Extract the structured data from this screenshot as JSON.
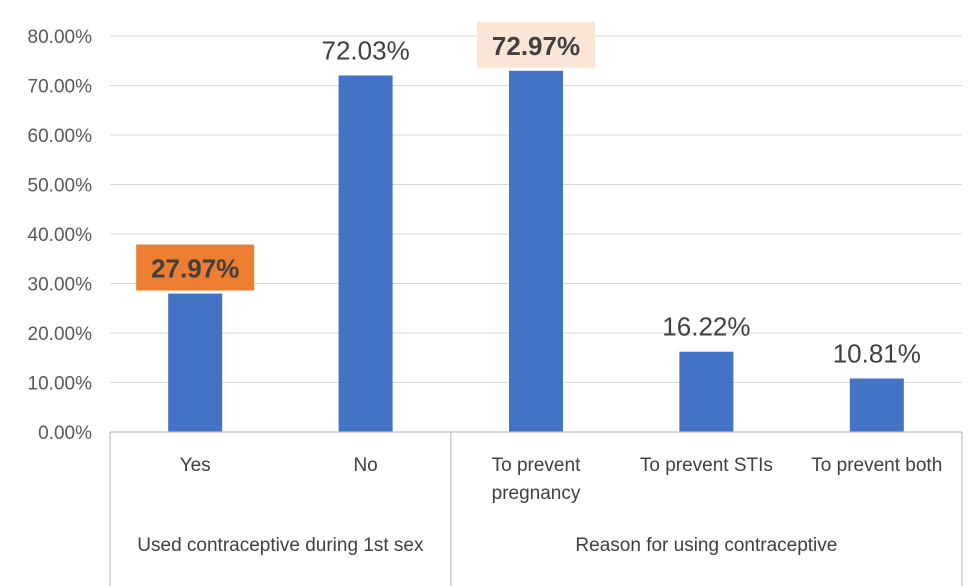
{
  "chart_data": {
    "type": "bar",
    "title": "",
    "xlabel": "",
    "ylabel": "",
    "ylim": [
      0,
      0.8
    ],
    "y_ticks": [
      "0.00%",
      "10.00%",
      "20.00%",
      "30.00%",
      "40.00%",
      "50.00%",
      "60.00%",
      "70.00%",
      "80.00%"
    ],
    "grid": true,
    "legend": "none",
    "bar_color": "#4472C4",
    "groups": [
      {
        "label": "Used contraceptive during 1st sex",
        "start": 0,
        "end": 2
      },
      {
        "label": "Reason for using contraceptive",
        "start": 2,
        "end": 5
      }
    ],
    "categories": [
      "Yes",
      "No",
      "To prevent pregnancy",
      "To prevent STIs",
      "To prevent both"
    ],
    "values": [
      0.2797,
      0.7203,
      0.7297,
      0.1622,
      0.1081
    ],
    "data_labels": [
      "27.97%",
      "72.03%",
      "72.97%",
      "16.22%",
      "10.81%"
    ],
    "label_highlights": [
      {
        "fill": "#ED7D31",
        "bold": true
      },
      null,
      {
        "fill": "#FBE5D6",
        "bold": true
      },
      null,
      null
    ]
  }
}
